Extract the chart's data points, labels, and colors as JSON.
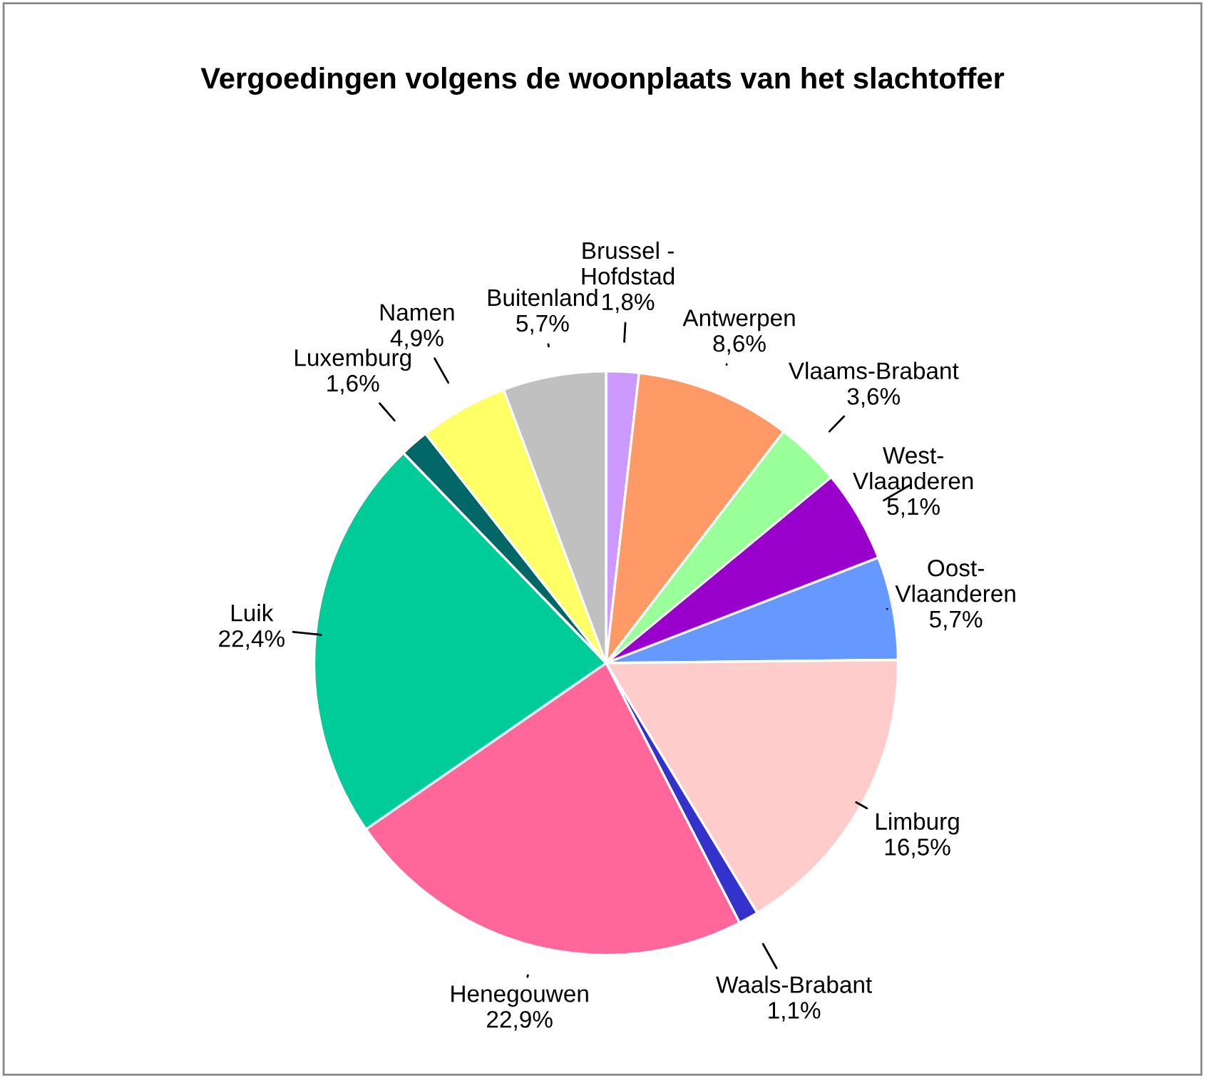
{
  "chart_data": {
    "type": "pie",
    "title": "Vergoedingen volgens de woonplaats van het slachtoffer",
    "categories": [
      "Brussel -\nHofdstad",
      "Antwerpen",
      "Vlaams-Brabant",
      "West-\nVlaanderen",
      "Oost-\nVlaanderen",
      "Limburg",
      "Waals-Brabant",
      "Henegouwen",
      "Luik",
      "Luxemburg",
      "Namen",
      "Buitenland"
    ],
    "values": [
      1.8,
      8.6,
      3.6,
      5.1,
      5.7,
      16.5,
      1.1,
      22.9,
      22.4,
      1.6,
      4.9,
      5.7
    ],
    "value_labels": [
      "1,8%",
      "8,6%",
      "3,6%",
      "5,1%",
      "5,7%",
      "16,5%",
      "1,1%",
      "22,9%",
      "22,4%",
      "1,6%",
      "4,9%",
      "5,7%"
    ],
    "colors": [
      "#cc99ff",
      "#ff9966",
      "#99ff99",
      "#9900cc",
      "#6699ff",
      "#ffcccc",
      "#3333cc",
      "#ff6699",
      "#00cc99",
      "#006666",
      "#ffff66",
      "#c0c0c0"
    ],
    "legend": false
  }
}
